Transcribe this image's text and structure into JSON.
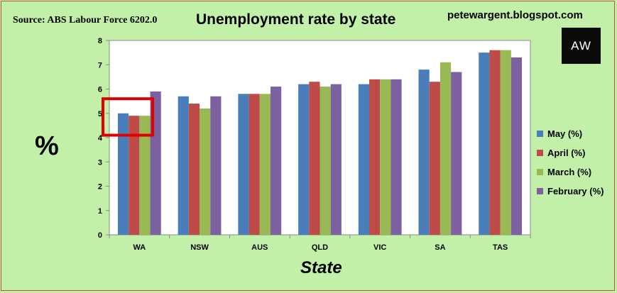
{
  "header": {
    "source": "Source: ABS Labour Force 6202.0",
    "title": "Unemployment rate by state",
    "blog": "petewargent.blogspot.com",
    "logo_text": "AW"
  },
  "chart_data": {
    "type": "bar",
    "title": "Unemployment rate by state",
    "xlabel": "State",
    "ylabel": "%",
    "ylim": [
      0,
      8
    ],
    "yticks": [
      0,
      1,
      2,
      3,
      4,
      5,
      6,
      7,
      8
    ],
    "grid": false,
    "legend_position": "right",
    "categories": [
      "WA",
      "NSW",
      "AUS",
      "QLD",
      "VIC",
      "SA",
      "TAS"
    ],
    "series": [
      {
        "name": "May (%)",
        "color": "#4a7ebb",
        "values": [
          5.0,
          5.7,
          5.8,
          6.2,
          6.2,
          6.8,
          7.5
        ]
      },
      {
        "name": "April (%)",
        "color": "#be4b48",
        "values": [
          4.9,
          5.4,
          5.8,
          6.3,
          6.4,
          6.3,
          7.6
        ]
      },
      {
        "name": "March (%)",
        "color": "#98b954",
        "values": [
          4.9,
          5.2,
          5.8,
          6.1,
          6.4,
          7.1,
          7.6
        ]
      },
      {
        "name": "February (%)",
        "color": "#7d60a0",
        "values": [
          5.9,
          5.7,
          6.1,
          6.2,
          6.4,
          6.7,
          7.3
        ]
      }
    ],
    "highlight": {
      "category": "WA",
      "color": "#e00000"
    }
  }
}
